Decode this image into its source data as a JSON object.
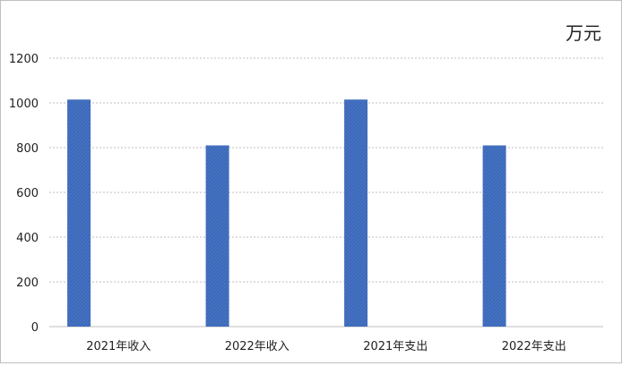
{
  "chart_data": {
    "type": "bar",
    "unit_label": "万元",
    "categories": [
      "2021年收入",
      "2022年收入",
      "2021年支出",
      "2022年支出"
    ],
    "values": [
      1015,
      810,
      1015,
      810
    ],
    "ylim": [
      0,
      1200
    ],
    "yticks": [
      0,
      200,
      400,
      600,
      800,
      1000,
      1200
    ],
    "grid": true,
    "legend": "none",
    "bar_color": "#4472c4",
    "gridline_color": "#bfbfbf"
  }
}
